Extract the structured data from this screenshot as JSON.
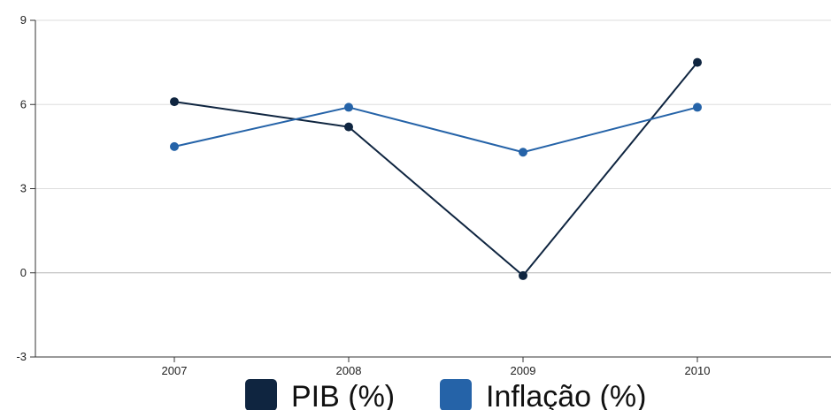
{
  "chart_data": {
    "type": "line",
    "title": "",
    "xlabel": "",
    "ylabel": "",
    "categories": [
      "2007",
      "2008",
      "2009",
      "2010"
    ],
    "ylim": [
      -3,
      9
    ],
    "yticks": [
      -3,
      0,
      3,
      6,
      9
    ],
    "grid": true,
    "legend_position": "bottom",
    "series": [
      {
        "name": "PIB (%)",
        "color": "#0f2540",
        "values": [
          6.1,
          5.2,
          -0.1,
          7.5
        ]
      },
      {
        "name": "Inflação (%)",
        "color": "#2563a8",
        "values": [
          4.5,
          5.9,
          4.3,
          5.9
        ]
      }
    ]
  }
}
